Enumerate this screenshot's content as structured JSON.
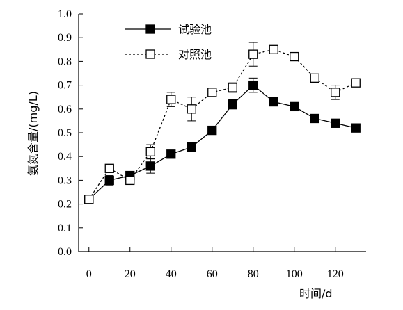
{
  "chart_data": {
    "type": "line",
    "title": "",
    "xlabel": "时间/d",
    "ylabel": "氨氮含量/(mg/L)",
    "xlim": [
      -5,
      135
    ],
    "ylim": [
      0.0,
      1.0
    ],
    "x_ticks": [
      "0",
      "20",
      "40",
      "60",
      "80",
      "100",
      "120"
    ],
    "y_ticks": [
      "0.0",
      "0.1",
      "0.2",
      "0.3",
      "0.4",
      "0.5",
      "0.6",
      "0.7",
      "0.8",
      "0.9",
      "1.0"
    ],
    "grid": false,
    "legend_position": "top-center",
    "series": [
      {
        "name": "试验池",
        "line_style": "solid",
        "marker": "filled-square",
        "color": "#000000",
        "x": [
          0,
          10,
          20,
          30,
          40,
          50,
          60,
          70,
          80,
          90,
          100,
          110,
          120,
          130
        ],
        "y": [
          0.22,
          0.3,
          0.32,
          0.36,
          0.41,
          0.44,
          0.51,
          0.62,
          0.7,
          0.63,
          0.61,
          0.56,
          0.54,
          0.52
        ],
        "error": [
          0,
          0.02,
          0.01,
          0.03,
          0.01,
          0.01,
          0.01,
          0.02,
          0.03,
          0.01,
          0.01,
          0.01,
          0.01,
          0.01
        ]
      },
      {
        "name": "对照池",
        "line_style": "dotted",
        "marker": "open-square",
        "color": "#000000",
        "x": [
          0,
          10,
          20,
          30,
          40,
          50,
          60,
          70,
          80,
          90,
          100,
          110,
          120,
          130
        ],
        "y": [
          0.22,
          0.35,
          0.3,
          0.42,
          0.64,
          0.6,
          0.67,
          0.69,
          0.83,
          0.85,
          0.82,
          0.73,
          0.67,
          0.71
        ],
        "error": [
          0,
          0.01,
          0.01,
          0.03,
          0.03,
          0.05,
          0.01,
          0.02,
          0.05,
          0.01,
          0.01,
          0.01,
          0.03,
          0.01
        ]
      }
    ]
  }
}
